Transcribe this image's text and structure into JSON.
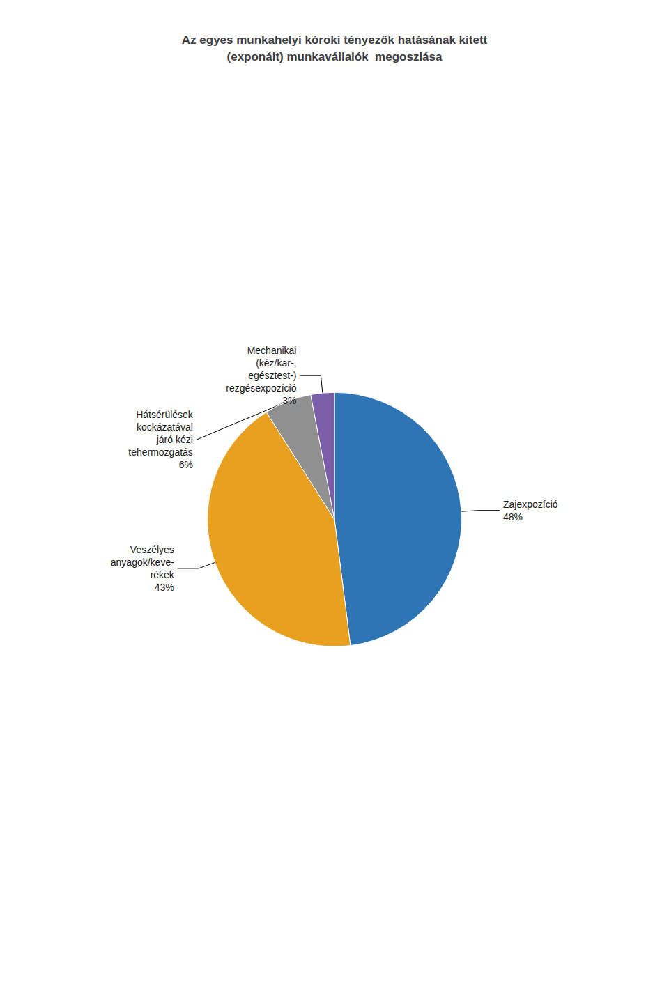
{
  "chart_data": {
    "type": "pie",
    "title": "Az egyes munkahelyi kóroki tényezők hatásának kitett\n(exponált) munkavállalók  megoszlása",
    "categories": [
      "Zajexpozíció",
      "Veszélyes\nanyagok/keve-\nrékek",
      "Hátsérülések\nkockázatával\njáró kézi\ntehermozgatás",
      "Mechanikai\n(kéz/kar-,\negésztest-)\nrezgésexpozíció"
    ],
    "values": [
      48,
      43,
      6,
      3
    ],
    "value_labels": [
      "48%",
      "43%",
      "6%",
      "3%"
    ],
    "colors": [
      "#2E75B6",
      "#E8A020",
      "#909090",
      "#7B5EA7"
    ],
    "data_labels": true
  }
}
